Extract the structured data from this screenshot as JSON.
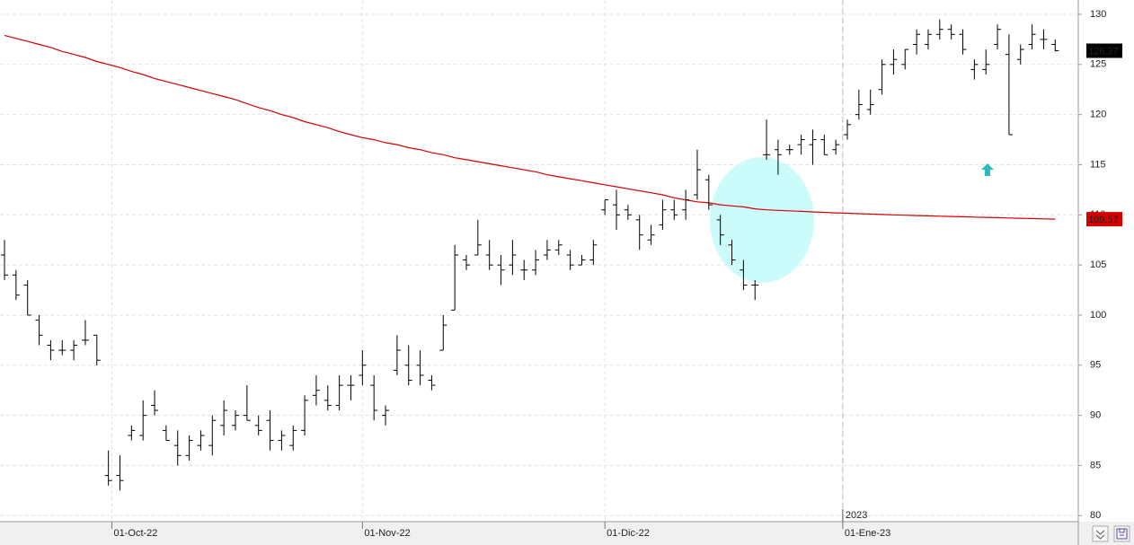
{
  "chart_data": {
    "type": "ohlc",
    "color": "#000000",
    "open": [
      106,
      104,
      103,
      99.5,
      97,
      96.5,
      96.5,
      97.5,
      98,
      84,
      84,
      88,
      88,
      91,
      88.5,
      87,
      86,
      87,
      87,
      89,
      89,
      90,
      89,
      89.5,
      87.5,
      87,
      88.5,
      92,
      91.5,
      91,
      93,
      94,
      93,
      90,
      94.5,
      95,
      95,
      93.5,
      96.5,
      100.5,
      105.5,
      106,
      106,
      105,
      105,
      104.5,
      104.5,
      106,
      106.5,
      106,
      105,
      105.5,
      110.5,
      111,
      110.5,
      109.5,
      107.5,
      109,
      110.5,
      110.5,
      112,
      113.5,
      109.5,
      107,
      104.5,
      103,
      116,
      116.5,
      116.5,
      117,
      117,
      117.5,
      116.5,
      118,
      120,
      120.5,
      122.5,
      125,
      125,
      127,
      127,
      128,
      128.5,
      128,
      124.5,
      124.5,
      127,
      126,
      125.5,
      127,
      127.5,
      127
    ],
    "high": [
      107.5,
      104.5,
      103.5,
      100,
      97.5,
      97.5,
      97.5,
      99.5,
      98,
      86.5,
      86,
      89,
      91.5,
      92.5,
      89,
      88.5,
      88,
      88.5,
      90,
      91.5,
      90.5,
      93,
      90,
      90.5,
      88.5,
      89,
      92,
      94,
      93,
      94,
      94,
      96.5,
      94,
      91,
      98,
      97,
      96.5,
      94,
      100,
      107,
      106,
      109.5,
      107.5,
      106,
      107.5,
      105.5,
      106.5,
      107.5,
      107.5,
      106.5,
      106,
      107.5,
      111.5,
      112.5,
      111,
      110,
      109,
      111.5,
      111.5,
      112.5,
      116.5,
      114,
      110,
      107.5,
      105.5,
      103.5,
      119.5,
      117.5,
      117,
      118,
      118.5,
      118,
      117.5,
      119.5,
      122.5,
      122.5,
      125.5,
      126.5,
      126.5,
      128.5,
      128.5,
      129.5,
      129,
      128.5,
      125.5,
      126.5,
      129,
      128,
      127,
      129,
      128.5,
      127.5
    ],
    "low": [
      103.5,
      101.5,
      100,
      97,
      95.5,
      96,
      95.5,
      97,
      95,
      83,
      82.5,
      87.5,
      87.5,
      90,
      87.5,
      85,
      85.5,
      86.5,
      86,
      88,
      88.5,
      89.5,
      88,
      86.5,
      86.5,
      86.5,
      88,
      91,
      90.5,
      90.5,
      91.5,
      93,
      89.5,
      89,
      94,
      93,
      93,
      92.5,
      96.5,
      100.5,
      104.5,
      106,
      104.5,
      103,
      104,
      103.5,
      104,
      105.5,
      106,
      104.5,
      105,
      105,
      110,
      108.5,
      109.5,
      106.5,
      107,
      108.5,
      109.5,
      109.5,
      111.5,
      110.5,
      107,
      105,
      102.5,
      101.5,
      115.5,
      114,
      116,
      116,
      115,
      116,
      116,
      117.5,
      119.5,
      120,
      122,
      124,
      124.5,
      126,
      126.5,
      127.5,
      127.5,
      126,
      123.5,
      124,
      126.5,
      118,
      125,
      126.5,
      126.5,
      126.3
    ],
    "close": [
      104,
      102,
      100,
      98,
      96.5,
      96.5,
      97,
      97.5,
      95.5,
      83.5,
      83.5,
      88.5,
      90,
      90.5,
      87.5,
      86,
      87.5,
      88,
      89.5,
      90.5,
      90,
      89.5,
      88.5,
      87.5,
      88,
      88.5,
      91.5,
      92.5,
      91,
      93,
      93,
      95,
      90.5,
      90.5,
      96.5,
      93.5,
      94,
      93,
      99,
      106,
      105,
      107,
      105,
      104.5,
      106,
      104.5,
      105.5,
      106.5,
      107,
      105,
      105.5,
      107,
      111.5,
      110,
      110,
      108,
      108,
      110.5,
      110,
      111.5,
      114.5,
      111,
      108,
      105.5,
      103,
      103,
      116,
      116,
      116.5,
      117.5,
      117.5,
      116,
      117,
      119,
      121,
      121,
      125,
      125.5,
      126.5,
      128,
      128,
      128.5,
      128,
      126.5,
      125,
      125,
      128.5,
      118,
      126.5,
      128,
      127.5,
      126.37
    ],
    "last_value_label": "126,37",
    "overlay": {
      "type": "line",
      "color": "#d40000",
      "values": [
        127.9,
        127.6,
        127.3,
        127.0,
        126.7,
        126.3,
        126.0,
        125.7,
        125.3,
        125.0,
        124.7,
        124.3,
        124.0,
        123.6,
        123.3,
        123.0,
        122.7,
        122.4,
        122.1,
        121.8,
        121.5,
        121.1,
        120.7,
        120.4,
        120.0,
        119.7,
        119.3,
        119.0,
        118.7,
        118.3,
        118.0,
        117.7,
        117.5,
        117.2,
        117.0,
        116.7,
        116.5,
        116.2,
        116.0,
        115.7,
        115.5,
        115.3,
        115.1,
        114.9,
        114.7,
        114.5,
        114.3,
        114.0,
        113.8,
        113.6,
        113.4,
        113.2,
        113.0,
        112.8,
        112.6,
        112.4,
        112.2,
        112.0,
        111.7,
        111.5,
        111.3,
        111.2,
        111.0,
        110.9,
        110.8,
        110.6,
        110.5,
        110.45,
        110.4,
        110.35,
        110.3,
        110.25,
        110.2,
        110.16,
        110.12,
        110.08,
        110.04,
        110.0,
        109.96,
        109.93,
        109.9,
        109.87,
        109.84,
        109.81,
        109.78,
        109.75,
        109.72,
        109.69,
        109.66,
        109.63,
        109.6,
        109.57
      ],
      "last_value_label": "109,57"
    },
    "xlim": [
      -0.39,
      93.0
    ],
    "ylim": [
      79.4,
      131.43
    ],
    "yticks": [
      80,
      85,
      90,
      95,
      100,
      105,
      110,
      115,
      120,
      125,
      130
    ],
    "xticks": [
      {
        "value": 9.3,
        "label": "01-Oct-22"
      },
      {
        "value": 31,
        "label": "01-Nov-22"
      },
      {
        "value": 52,
        "label": "01-Dic-22"
      },
      {
        "value": 72.6,
        "label": "01-Ene-23"
      }
    ],
    "year_marker": {
      "value": 72.6,
      "label": "2023"
    },
    "grid": true
  }
}
